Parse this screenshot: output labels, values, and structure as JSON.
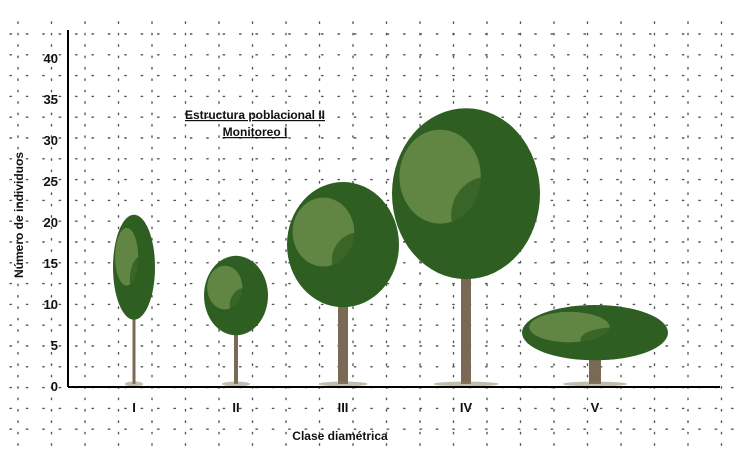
{
  "chart_data": {
    "type": "bar",
    "title": "Estructura poblacional II",
    "subtitle": "Monitoreo I",
    "xlabel": "Clase diamétrica",
    "ylabel": "Número de individuos",
    "ylim": [
      0,
      40
    ],
    "yticks": [
      0,
      5,
      10,
      15,
      20,
      25,
      30,
      35,
      40
    ],
    "categories": [
      "I",
      "II",
      "III",
      "IV",
      "V"
    ],
    "values": [
      21,
      16,
      25,
      34,
      10
    ],
    "grid": true,
    "bar_style": "tree-pictogram",
    "colors": {
      "axis": "#000000",
      "grid": "#555555",
      "foliage_dark": "#2f5e22",
      "foliage_light": "#8aa860",
      "trunk": "#7a6a55"
    }
  }
}
